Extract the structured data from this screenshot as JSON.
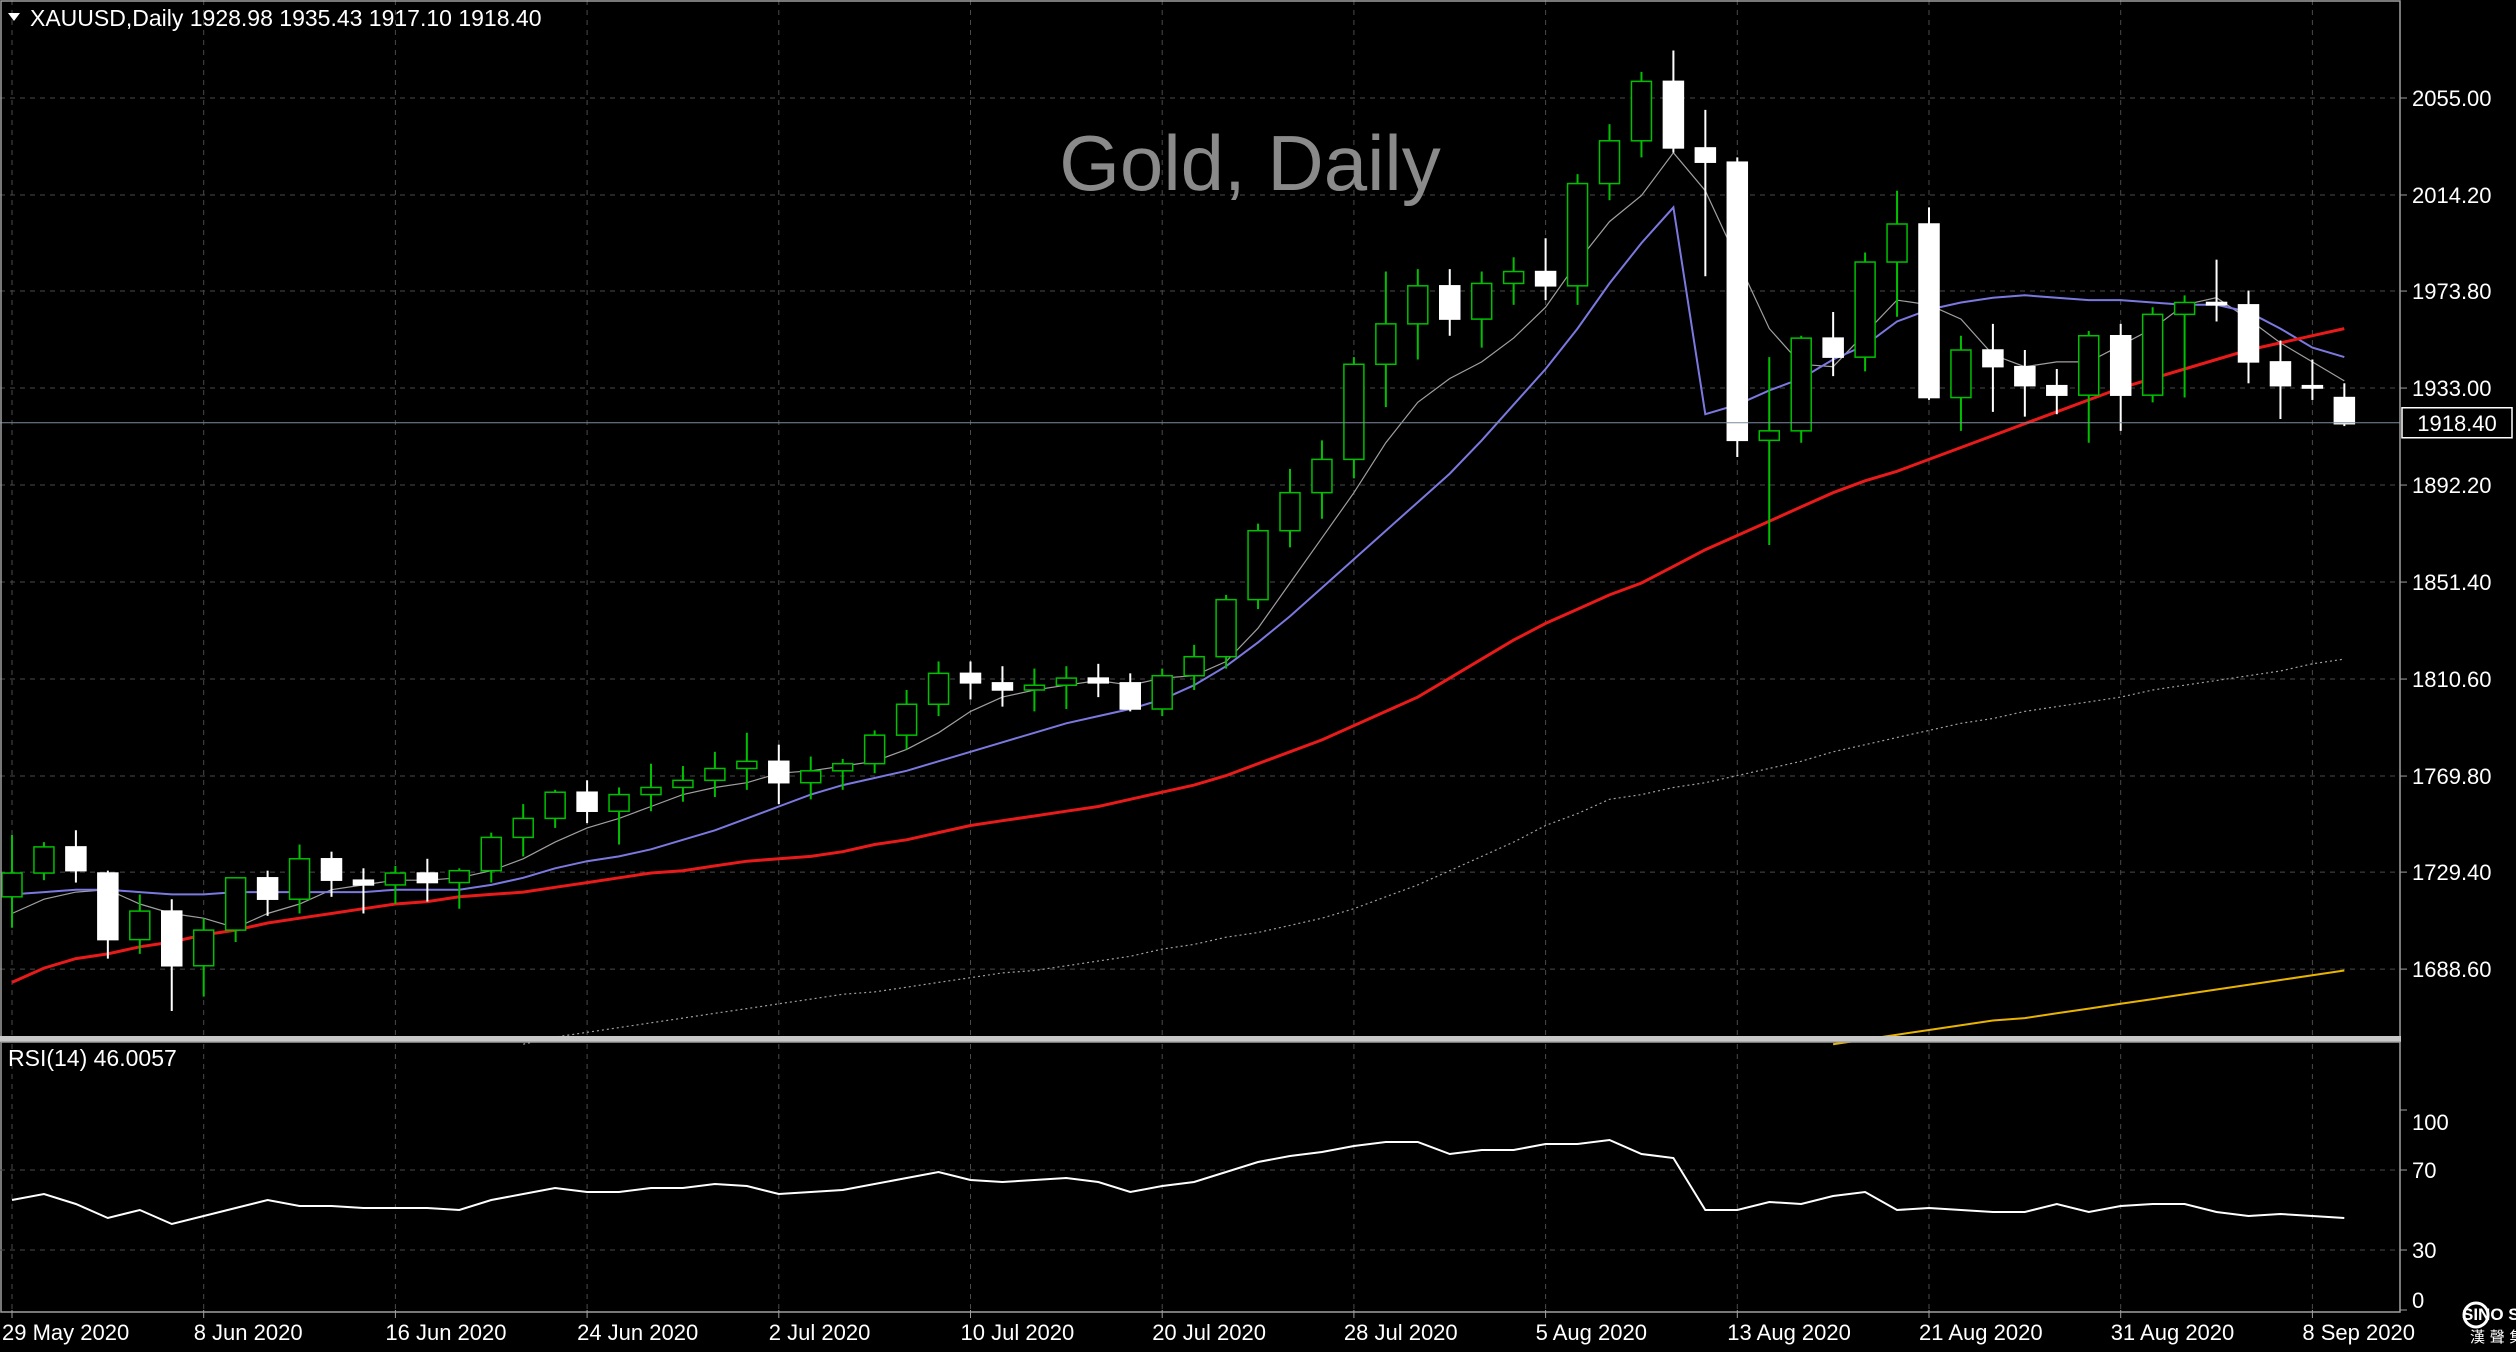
{
  "header": {
    "menu_arrow": "triangle-down-icon",
    "symbol_info": "XAUUSD,Daily  1928.98 1935.43 1917.10 1918.40"
  },
  "watermark": "Gold, Daily",
  "current_price_label": "1918.40",
  "rsi_label": "RSI(14) 46.0057",
  "logo": {
    "line1": "SINO SOUND",
    "line2": "漢 聲 集 團"
  },
  "colors": {
    "background": "#000000",
    "bull_candle": "#00c000",
    "bear_candle": "#ffffff",
    "ma_short": "#a0a0a0",
    "ma_medium": "#7b79e0",
    "ma_red": "#e81a1a",
    "ma_dotted": "#a0a0a0",
    "ma_yellow": "#e8b400",
    "rsi_line": "#ffffff",
    "separator": "#c0c0c0"
  },
  "chart_data": {
    "type": "candlestick",
    "symbol": "XAUUSD",
    "timeframe": "Daily",
    "ylim": [
      1658,
      2096
    ],
    "price_ticks": [
      "2055.00",
      "2014.20",
      "1973.80",
      "1933.00",
      "1892.20",
      "1851.40",
      "1810.60",
      "1769.80",
      "1729.40",
      "1688.60"
    ],
    "price_tick_values": [
      2055.0,
      2014.2,
      1973.8,
      1933.0,
      1892.2,
      1851.4,
      1810.6,
      1769.8,
      1729.4,
      1688.6
    ],
    "current_price": 1918.4,
    "x_labels": [
      {
        "index": 0,
        "text": "29 May 2020"
      },
      {
        "index": 6,
        "text": "8 Jun 2020"
      },
      {
        "index": 12,
        "text": "16 Jun 2020"
      },
      {
        "index": 18,
        "text": "24 Jun 2020"
      },
      {
        "index": 24,
        "text": "2 Jul 2020"
      },
      {
        "index": 30,
        "text": "10 Jul 2020"
      },
      {
        "index": 36,
        "text": "20 Jul 2020"
      },
      {
        "index": 42,
        "text": "28 Jul 2020"
      },
      {
        "index": 48,
        "text": "5 Aug 2020"
      },
      {
        "index": 54,
        "text": "13 Aug 2020"
      },
      {
        "index": 60,
        "text": "21 Aug 2020"
      },
      {
        "index": 66,
        "text": "31 Aug 2020"
      },
      {
        "index": 72,
        "text": "8 Sep 2020"
      }
    ],
    "candles": [
      [
        1719,
        1745,
        1706,
        1729
      ],
      [
        1729,
        1742,
        1726,
        1740
      ],
      [
        1740,
        1747,
        1725,
        1730
      ],
      [
        1729,
        1730,
        1693,
        1701
      ],
      [
        1701,
        1720,
        1695,
        1713
      ],
      [
        1713,
        1718,
        1671,
        1690
      ],
      [
        1690,
        1710,
        1677,
        1705
      ],
      [
        1705,
        1727,
        1700,
        1727
      ],
      [
        1727,
        1730,
        1711,
        1718
      ],
      [
        1718,
        1741,
        1712,
        1735
      ],
      [
        1735,
        1738,
        1719,
        1726
      ],
      [
        1726,
        1731,
        1712,
        1724
      ],
      [
        1724,
        1732,
        1716,
        1729
      ],
      [
        1729,
        1735,
        1717,
        1725
      ],
      [
        1725,
        1731,
        1714,
        1730
      ],
      [
        1730,
        1746,
        1725,
        1744
      ],
      [
        1744,
        1758,
        1736,
        1752
      ],
      [
        1752,
        1764,
        1748,
        1763
      ],
      [
        1763,
        1768,
        1750,
        1755
      ],
      [
        1755,
        1765,
        1741,
        1762
      ],
      [
        1762,
        1775,
        1755,
        1765
      ],
      [
        1765,
        1774,
        1759,
        1768
      ],
      [
        1768,
        1780,
        1761,
        1773
      ],
      [
        1773,
        1788,
        1764,
        1776
      ],
      [
        1776,
        1783,
        1758,
        1767
      ],
      [
        1767,
        1778,
        1760,
        1772
      ],
      [
        1772,
        1777,
        1764,
        1775
      ],
      [
        1775,
        1789,
        1771,
        1787
      ],
      [
        1787,
        1806,
        1781,
        1800
      ],
      [
        1800,
        1818,
        1795,
        1813
      ],
      [
        1813,
        1818,
        1802,
        1809
      ],
      [
        1809,
        1816,
        1799,
        1806
      ],
      [
        1806,
        1815,
        1797,
        1808
      ],
      [
        1808,
        1816,
        1798,
        1811
      ],
      [
        1811,
        1817,
        1803,
        1809
      ],
      [
        1809,
        1813,
        1797,
        1798
      ],
      [
        1798,
        1815,
        1795,
        1812
      ],
      [
        1812,
        1825,
        1806,
        1820
      ],
      [
        1820,
        1846,
        1815,
        1844
      ],
      [
        1844,
        1876,
        1840,
        1873
      ],
      [
        1873,
        1899,
        1866,
        1889
      ],
      [
        1889,
        1911,
        1878,
        1903
      ],
      [
        1903,
        1946,
        1895,
        1943
      ],
      [
        1943,
        1982,
        1925,
        1960
      ],
      [
        1960,
        1983,
        1945,
        1976
      ],
      [
        1976,
        1983,
        1955,
        1962
      ],
      [
        1962,
        1982,
        1950,
        1977
      ],
      [
        1977,
        1988,
        1968,
        1982
      ],
      [
        1982,
        1996,
        1970,
        1976
      ],
      [
        1976,
        2023,
        1968,
        2019
      ],
      [
        2019,
        2044,
        2012,
        2037
      ],
      [
        2037,
        2066,
        2030,
        2062
      ],
      [
        2062,
        2075,
        2032,
        2034
      ],
      [
        2034,
        2050,
        1980,
        2028
      ],
      [
        2028,
        2030,
        1904,
        1911
      ],
      [
        1911,
        1946,
        1867,
        1915
      ],
      [
        1915,
        1955,
        1910,
        1954
      ],
      [
        1954,
        1965,
        1938,
        1946
      ],
      [
        1946,
        1990,
        1940,
        1986
      ],
      [
        1986,
        2016,
        1963,
        2002
      ],
      [
        2002,
        2009,
        1928,
        1929
      ],
      [
        1929,
        1955,
        1915,
        1949
      ],
      [
        1949,
        1960,
        1923,
        1942
      ],
      [
        1942,
        1949,
        1921,
        1934
      ],
      [
        1934,
        1941,
        1922,
        1930
      ],
      [
        1930,
        1957,
        1910,
        1955
      ],
      [
        1955,
        1960,
        1915,
        1930
      ],
      [
        1930,
        1967,
        1927,
        1964
      ],
      [
        1964,
        1972,
        1929,
        1969
      ],
      [
        1969,
        1987,
        1961,
        1968
      ],
      [
        1968,
        1974,
        1935,
        1944
      ],
      [
        1944,
        1953,
        1920,
        1934
      ],
      [
        1934,
        1945,
        1928,
        1933
      ],
      [
        1929,
        1935,
        1917,
        1918
      ]
    ],
    "indicators": [
      {
        "type": "ma",
        "style": "solid",
        "color": "#a0a0a0",
        "values": [
          1712.0,
          1718.0,
          1721.0,
          1722.0,
          1716.0,
          1712.0,
          1710.0,
          1706.0,
          1712.0,
          1716.0,
          1722.0,
          1724.0,
          1726.0,
          1726.0,
          1727.0,
          1730.0,
          1735.0,
          1742.0,
          1748.0,
          1752.0,
          1757.0,
          1762.0,
          1765.0,
          1767.0,
          1771.0,
          1772.0,
          1774.0,
          1776.0,
          1781.0,
          1788.0,
          1797.0,
          1803.0,
          1806.0,
          1808.0,
          1810.0,
          1808.0,
          1811.0,
          1812.0,
          1818.0,
          1832.0,
          1851.0,
          1870.0,
          1889.0,
          1910.0,
          1927.0,
          1937.0,
          1944.0,
          1954.0,
          1967.0,
          1986.0,
          2003.0,
          2014.0,
          2032.0,
          2016.0,
          1987.0,
          1958.0,
          1943.0,
          1942.0,
          1956.0,
          1970.0,
          1968.0,
          1962.0,
          1947.0,
          1942.0,
          1944.0,
          1944.0,
          1951.0,
          1958.0,
          1968.0,
          1971.0,
          1962.0,
          1952.0,
          1944.0,
          1936.0
        ]
      },
      {
        "type": "ma",
        "style": "solid",
        "color": "#7b79e0",
        "values": [
          1720.0,
          1721.0,
          1722.0,
          1722.0,
          1721.0,
          1720.0,
          1720.0,
          1721.0,
          1721.0,
          1721.0,
          1721.0,
          1721.0,
          1722.0,
          1722.0,
          1722.0,
          1724.0,
          1727.0,
          1731.0,
          1734.0,
          1736.0,
          1739.0,
          1743.0,
          1747.0,
          1752.0,
          1757.0,
          1762.0,
          1766.0,
          1769.0,
          1772.0,
          1776.0,
          1780.0,
          1784.0,
          1788.0,
          1792.0,
          1795.0,
          1798.0,
          1802.0,
          1808.0,
          1816.0,
          1826.0,
          1837.0,
          1849.0,
          1861.0,
          1873.0,
          1885.0,
          1897.0,
          1911.0,
          1926.0,
          1941.0,
          1958.0,
          1977.0,
          1994.0,
          2009.0,
          1922.0,
          1926.0,
          1932.0,
          1937.0,
          1945.0,
          1951.0,
          1961.0,
          1966.0,
          1969.0,
          1971.0,
          1972.0,
          1971.0,
          1970.0,
          1970.0,
          1969.0,
          1968.0,
          1968.0,
          1965.0,
          1958.0,
          1950.0,
          1946.0
        ]
      },
      {
        "type": "ma",
        "style": "solid",
        "color": "#e81a1a",
        "values": [
          1683.0,
          1689.0,
          1693.0,
          1695.0,
          1698.0,
          1700.0,
          1703.0,
          1705.0,
          1708.0,
          1710.0,
          1712.0,
          1714.0,
          1716.0,
          1717.0,
          1719.0,
          1720.0,
          1721.0,
          1723.0,
          1725.0,
          1727.0,
          1729.0,
          1730.0,
          1732.0,
          1734.0,
          1735.0,
          1736.0,
          1738.0,
          1741.0,
          1743.0,
          1746.0,
          1749.0,
          1751.0,
          1753.0,
          1755.0,
          1757.0,
          1760.0,
          1763.0,
          1766.0,
          1770.0,
          1775.0,
          1780.0,
          1785.0,
          1791.0,
          1797.0,
          1803.0,
          1811.0,
          1819.0,
          1827.0,
          1834.0,
          1840.0,
          1846.0,
          1851.0,
          1858.0,
          1865.0,
          1871.0,
          1877.0,
          1883.0,
          1889.0,
          1894.0,
          1898.0,
          1903.0,
          1908.0,
          1913.0,
          1918.0,
          1923.0,
          1928.0,
          1933.0,
          1937.0,
          1941.0,
          1945.0,
          1949.0,
          1952.0,
          1955.0,
          1958.0
        ]
      },
      {
        "type": "ma",
        "style": "dotted",
        "color": "#a0a0a0",
        "values": [
          null,
          null,
          null,
          null,
          null,
          null,
          null,
          null,
          null,
          null,
          null,
          null,
          null,
          null,
          null,
          null,
          1657.0,
          1660.0,
          1662.0,
          1664.0,
          1666.0,
          1668.0,
          1670.0,
          1672.0,
          1674.0,
          1676.0,
          1678.0,
          1679.0,
          1681.0,
          1683.0,
          1685.0,
          1687.0,
          1688.0,
          1690.0,
          1692.0,
          1694.0,
          1697.0,
          1699.0,
          1702.0,
          1704.0,
          1707.0,
          1710.0,
          1714.0,
          1719.0,
          1724.0,
          1730.0,
          1736.0,
          1742.0,
          1749.0,
          1754.0,
          1760.0,
          1762.0,
          1765.0,
          1767.0,
          1770.0,
          1773.0,
          1776.0,
          1780.0,
          1783.0,
          1786.0,
          1789.0,
          1792.0,
          1794.0,
          1797.0,
          1799.0,
          1801.0,
          1803.0,
          1806.0,
          1808.0,
          1810.0,
          1812.0,
          1814.0,
          1817.0,
          1819.0
        ]
      },
      {
        "type": "ma",
        "style": "solid",
        "color": "#e8b400",
        "values": [
          null,
          null,
          null,
          null,
          null,
          null,
          null,
          null,
          null,
          null,
          null,
          null,
          null,
          null,
          null,
          null,
          null,
          null,
          null,
          null,
          null,
          null,
          null,
          null,
          null,
          null,
          null,
          null,
          null,
          null,
          null,
          null,
          null,
          null,
          null,
          null,
          null,
          null,
          null,
          null,
          null,
          null,
          null,
          null,
          null,
          null,
          null,
          null,
          null,
          null,
          null,
          null,
          null,
          null,
          null,
          null,
          null,
          1657.0,
          1659.0,
          1661.0,
          1663.0,
          1665.0,
          1667.0,
          1668.0,
          1670.0,
          1672.0,
          1674.0,
          1676.0,
          1678.0,
          1680.0,
          1682.0,
          1684.0,
          1686.0,
          1688.0
        ]
      }
    ],
    "rsi": {
      "name": "RSI(14)",
      "last": 46.0057,
      "ylim": [
        0,
        100
      ],
      "ticks": [
        100,
        70,
        30,
        0
      ],
      "values": [
        55,
        58,
        53,
        46,
        50,
        43,
        47,
        51,
        55,
        52,
        52,
        51,
        51,
        51,
        50,
        55,
        58,
        61,
        59,
        59,
        61,
        61,
        63,
        62,
        58,
        59,
        60,
        63,
        66,
        69,
        65,
        64,
        65,
        66,
        64,
        59,
        62,
        64,
        69,
        74,
        77,
        79,
        82,
        84,
        84,
        78,
        80,
        80,
        83,
        83,
        85,
        78,
        76,
        50,
        50,
        54,
        53,
        57,
        59,
        50,
        51,
        50,
        49,
        49,
        53,
        49,
        52,
        53,
        53,
        49,
        47,
        48,
        47,
        46
      ]
    }
  }
}
